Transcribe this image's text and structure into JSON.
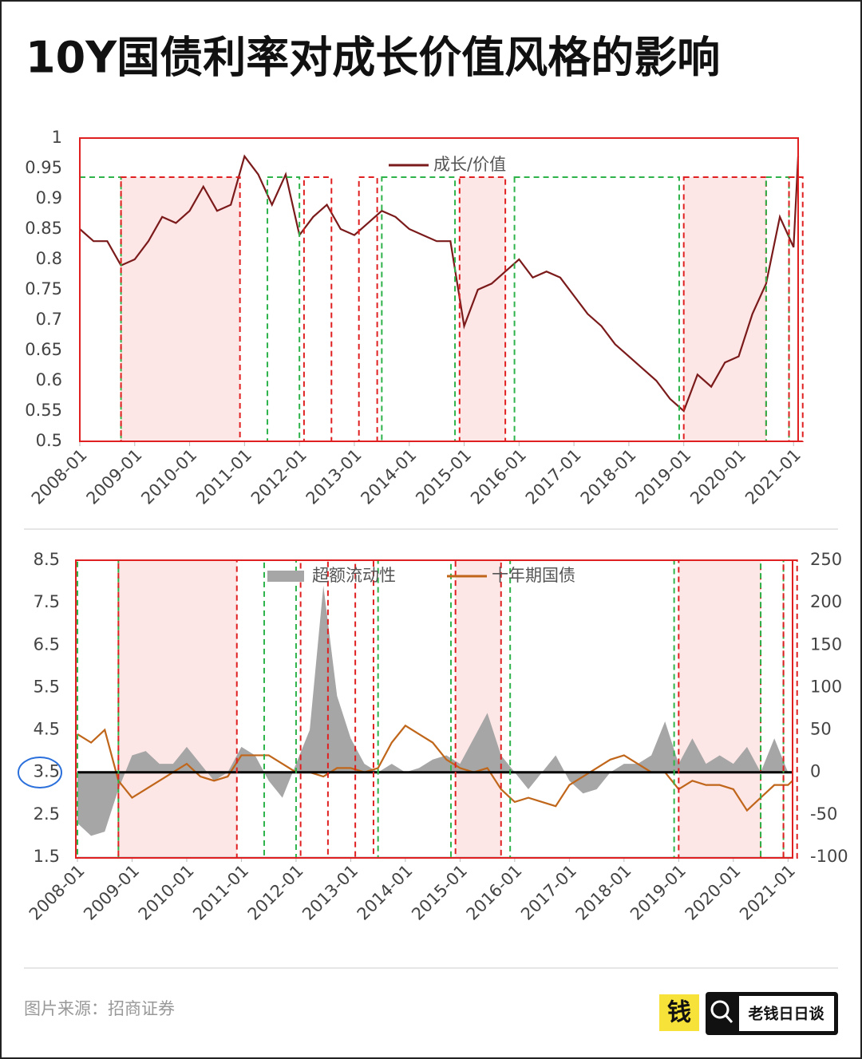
{
  "title": "10Y国债利率对成长价值风格的影响",
  "source": "图片来源：招商证券",
  "brand": {
    "logo": "钱",
    "name": "老钱日日谈"
  },
  "periods": [
    {
      "start": "2008-01",
      "end": "2008-10",
      "color": "#2db34a",
      "shaded": false
    },
    {
      "start": "2008-10",
      "end": "2010-12",
      "color": "#e02020",
      "shaded": true
    },
    {
      "start": "2011-06",
      "end": "2012-01",
      "color": "#2db34a",
      "shaded": false
    },
    {
      "start": "2012-02",
      "end": "2012-08",
      "color": "#e02020",
      "shaded": false
    },
    {
      "start": "2013-02",
      "end": "2013-06",
      "color": "#e02020",
      "shaded": false
    },
    {
      "start": "2013-07",
      "end": "2014-11",
      "color": "#2db34a",
      "shaded": false
    },
    {
      "start": "2014-12",
      "end": "2015-10",
      "color": "#e02020",
      "shaded": true
    },
    {
      "start": "2015-12",
      "end": "2018-12",
      "color": "#2db34a",
      "shaded": false
    },
    {
      "start": "2019-01",
      "end": "2020-07",
      "color": "#e02020",
      "shaded": true
    },
    {
      "start": "2020-07",
      "end": "2020-12",
      "color": "#2db34a",
      "shaded": false
    },
    {
      "start": "2020-12",
      "end": "2021-03",
      "color": "#e02020",
      "shaded": false
    }
  ],
  "chart_data": [
    {
      "type": "line",
      "legend": "top",
      "x": [
        "2008-01",
        "2008-04",
        "2008-07",
        "2008-10",
        "2009-01",
        "2009-04",
        "2009-07",
        "2009-10",
        "2010-01",
        "2010-04",
        "2010-07",
        "2010-10",
        "2011-01",
        "2011-04",
        "2011-07",
        "2011-10",
        "2012-01",
        "2012-04",
        "2012-07",
        "2012-10",
        "2013-01",
        "2013-04",
        "2013-07",
        "2013-10",
        "2014-01",
        "2014-04",
        "2014-07",
        "2014-10",
        "2015-01",
        "2015-04",
        "2015-07",
        "2015-10",
        "2016-01",
        "2016-04",
        "2016-07",
        "2016-10",
        "2017-01",
        "2017-04",
        "2017-07",
        "2017-10",
        "2018-01",
        "2018-04",
        "2018-07",
        "2018-10",
        "2019-01",
        "2019-04",
        "2019-07",
        "2019-10",
        "2020-01",
        "2020-04",
        "2020-07",
        "2020-10",
        "2021-01",
        "2021-02"
      ],
      "xlim": [
        "2008-01",
        "2021-02"
      ],
      "xticks": [
        "2008-01",
        "2009-01",
        "2010-01",
        "2011-01",
        "2012-01",
        "2013-01",
        "2014-01",
        "2015-01",
        "2016-01",
        "2017-01",
        "2018-01",
        "2019-01",
        "2020-01",
        "2021-01"
      ],
      "ylim": [
        0.5,
        1
      ],
      "yticks": [
        0.5,
        0.55,
        0.6,
        0.65,
        0.7,
        0.75,
        0.8,
        0.85,
        0.9,
        0.95,
        1
      ],
      "series": [
        {
          "name": "成长/价值",
          "color": "#7b1a1a",
          "values": [
            0.85,
            0.83,
            0.83,
            0.79,
            0.8,
            0.83,
            0.87,
            0.86,
            0.88,
            0.92,
            0.88,
            0.89,
            0.97,
            0.94,
            0.89,
            0.94,
            0.84,
            0.87,
            0.89,
            0.85,
            0.84,
            0.86,
            0.88,
            0.87,
            0.85,
            0.84,
            0.83,
            0.83,
            0.69,
            0.75,
            0.76,
            0.78,
            0.8,
            0.77,
            0.78,
            0.77,
            0.74,
            0.71,
            0.69,
            0.66,
            0.64,
            0.62,
            0.6,
            0.57,
            0.55,
            0.61,
            0.59,
            0.63,
            0.64,
            0.71,
            0.76,
            0.87,
            0.82,
            0.97
          ]
        }
      ]
    },
    {
      "type": "line",
      "legend": "top",
      "x": [
        "2008-01",
        "2008-04",
        "2008-07",
        "2008-10",
        "2009-01",
        "2009-04",
        "2009-07",
        "2009-10",
        "2010-01",
        "2010-04",
        "2010-07",
        "2010-10",
        "2011-01",
        "2011-04",
        "2011-07",
        "2011-10",
        "2012-01",
        "2012-04",
        "2012-07",
        "2012-10",
        "2013-01",
        "2013-04",
        "2013-07",
        "2013-10",
        "2014-01",
        "2014-04",
        "2014-07",
        "2014-10",
        "2015-01",
        "2015-04",
        "2015-07",
        "2015-10",
        "2016-01",
        "2016-04",
        "2016-07",
        "2016-10",
        "2017-01",
        "2017-04",
        "2017-07",
        "2017-10",
        "2018-01",
        "2018-04",
        "2018-07",
        "2018-10",
        "2019-01",
        "2019-04",
        "2019-07",
        "2019-10",
        "2020-01",
        "2020-04",
        "2020-07",
        "2020-10",
        "2021-01",
        "2021-02"
      ],
      "xlim": [
        "2008-01",
        "2021-02"
      ],
      "xticks": [
        "2008-01",
        "2009-01",
        "2010-01",
        "2011-01",
        "2012-01",
        "2013-01",
        "2014-01",
        "2015-01",
        "2016-01",
        "2017-01",
        "2018-01",
        "2019-01",
        "2020-01",
        "2021-01"
      ],
      "ylim": [
        1.5,
        8.5
      ],
      "yticks": [
        1.5,
        2.5,
        3.5,
        4.5,
        5.5,
        6.5,
        7.5,
        8.5
      ],
      "y2lim": [
        -100,
        250
      ],
      "y2ticks": [
        -100,
        -50,
        0,
        50,
        100,
        150,
        200,
        250
      ],
      "series": [
        {
          "name": "超额流动性",
          "color": "#a6a6a6",
          "kind": "area",
          "axis": "y2",
          "values": [
            -60,
            -75,
            -70,
            -20,
            20,
            25,
            10,
            10,
            30,
            10,
            -10,
            0,
            30,
            20,
            -10,
            -30,
            10,
            50,
            220,
            90,
            40,
            10,
            0,
            10,
            0,
            5,
            15,
            20,
            10,
            40,
            70,
            20,
            0,
            -20,
            0,
            20,
            -10,
            -25,
            -20,
            0,
            10,
            10,
            20,
            60,
            10,
            40,
            10,
            20,
            10,
            30,
            0,
            40,
            0,
            0
          ]
        },
        {
          "name": "十年期国债",
          "color": "#c0661a",
          "values": [
            4.4,
            4.2,
            4.5,
            3.3,
            2.9,
            3.1,
            3.3,
            3.5,
            3.7,
            3.4,
            3.3,
            3.4,
            3.9,
            3.9,
            3.9,
            3.7,
            3.5,
            3.5,
            3.4,
            3.6,
            3.6,
            3.5,
            3.6,
            4.2,
            4.6,
            4.4,
            4.2,
            3.8,
            3.6,
            3.5,
            3.6,
            3.1,
            2.8,
            2.9,
            2.8,
            2.7,
            3.2,
            3.4,
            3.6,
            3.8,
            3.9,
            3.7,
            3.5,
            3.5,
            3.1,
            3.3,
            3.2,
            3.2,
            3.1,
            2.6,
            2.9,
            3.2,
            3.2,
            3.3
          ]
        }
      ]
    }
  ]
}
